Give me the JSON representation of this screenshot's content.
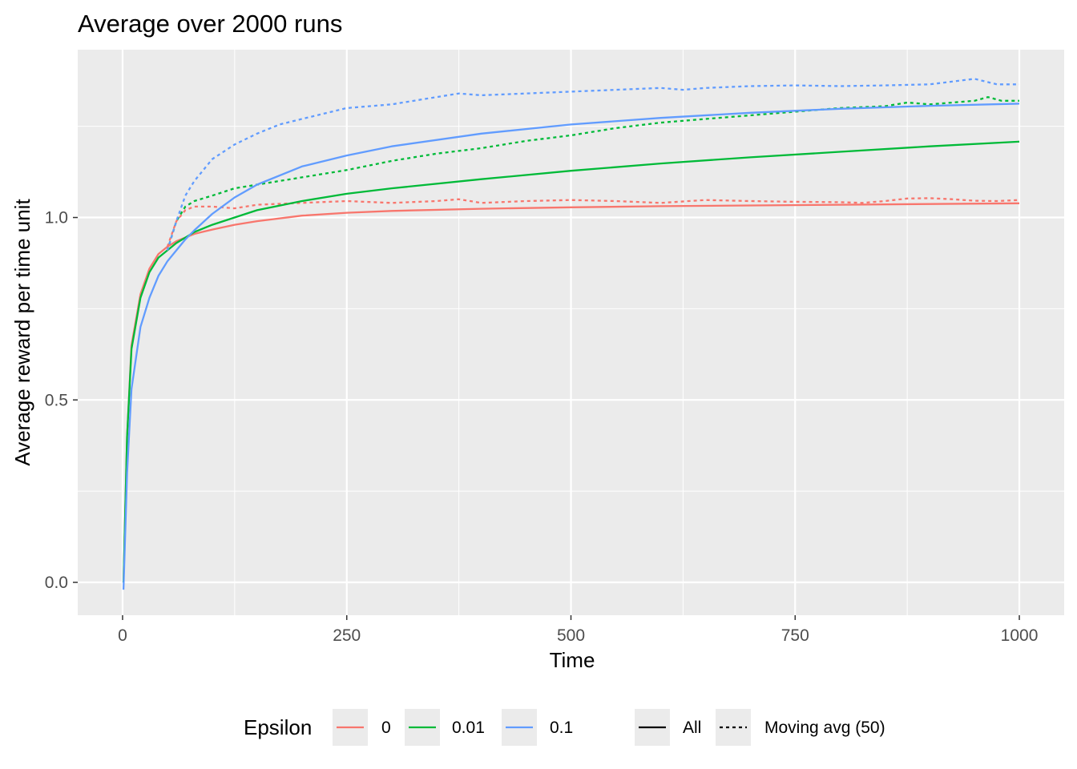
{
  "chart_data": {
    "type": "line",
    "title": "Average over 2000 runs",
    "xlabel": "Time",
    "ylabel": "Average reward per time unit",
    "xlim": [
      -50,
      1050
    ],
    "ylim": [
      -0.09,
      1.46
    ],
    "x_ticks": [
      0,
      250,
      500,
      750,
      1000
    ],
    "x_tick_labels": [
      "0",
      "250",
      "500",
      "750",
      "1000"
    ],
    "y_ticks": [
      0.0,
      0.5,
      1.0
    ],
    "y_tick_labels": [
      "0.0",
      "0.5",
      "1.0"
    ],
    "grid": true,
    "legend_position": "bottom",
    "colors": {
      "eps_0": "#F8766D",
      "eps_001": "#00BA38",
      "eps_01": "#619CFF"
    },
    "legend": {
      "color_title": "Epsilon",
      "color_items": [
        {
          "label": "0",
          "color": "#F8766D"
        },
        {
          "label": "0.01",
          "color": "#00BA38"
        },
        {
          "label": "0.1",
          "color": "#619CFF"
        }
      ],
      "linetype_items": [
        {
          "label": "All",
          "dash": "solid"
        },
        {
          "label": "Moving avg (50)",
          "dash": "dotted"
        }
      ]
    },
    "series": [
      {
        "epsilon": "0",
        "linetype": "All",
        "color": "#F8766D",
        "dash": "solid",
        "x": [
          1,
          5,
          10,
          20,
          30,
          40,
          50,
          60,
          70,
          80,
          100,
          125,
          150,
          200,
          250,
          300,
          400,
          500,
          600,
          700,
          800,
          900,
          1000
        ],
        "y": [
          0.0,
          0.4,
          0.65,
          0.79,
          0.86,
          0.9,
          0.92,
          0.935,
          0.945,
          0.955,
          0.967,
          0.98,
          0.99,
          1.005,
          1.013,
          1.018,
          1.024,
          1.028,
          1.031,
          1.033,
          1.035,
          1.037,
          1.039
        ]
      },
      {
        "epsilon": "0",
        "linetype": "Moving avg (50)",
        "color": "#F8766D",
        "dash": "dotted",
        "x": [
          50,
          60,
          70,
          80,
          100,
          125,
          150,
          200,
          250,
          300,
          350,
          375,
          400,
          450,
          500,
          550,
          600,
          650,
          700,
          750,
          800,
          825,
          850,
          875,
          900,
          925,
          950,
          975,
          1000
        ],
        "y": [
          0.92,
          0.99,
          1.02,
          1.03,
          1.03,
          1.025,
          1.035,
          1.04,
          1.045,
          1.04,
          1.045,
          1.05,
          1.04,
          1.045,
          1.048,
          1.045,
          1.04,
          1.048,
          1.045,
          1.043,
          1.042,
          1.04,
          1.045,
          1.052,
          1.053,
          1.05,
          1.046,
          1.045,
          1.048
        ]
      },
      {
        "epsilon": "0.01",
        "linetype": "All",
        "color": "#00BA38",
        "dash": "solid",
        "x": [
          1,
          5,
          10,
          20,
          30,
          40,
          50,
          60,
          70,
          80,
          100,
          125,
          150,
          200,
          250,
          300,
          400,
          500,
          600,
          700,
          800,
          900,
          1000
        ],
        "y": [
          0.0,
          0.4,
          0.64,
          0.78,
          0.85,
          0.89,
          0.91,
          0.93,
          0.945,
          0.96,
          0.98,
          1.0,
          1.02,
          1.045,
          1.065,
          1.08,
          1.105,
          1.128,
          1.148,
          1.165,
          1.18,
          1.195,
          1.208
        ]
      },
      {
        "epsilon": "0.01",
        "linetype": "Moving avg (50)",
        "color": "#00BA38",
        "dash": "dotted",
        "x": [
          50,
          60,
          70,
          80,
          100,
          125,
          150,
          200,
          250,
          300,
          350,
          400,
          450,
          500,
          550,
          600,
          650,
          700,
          750,
          800,
          850,
          875,
          900,
          950,
          965,
          980,
          1000
        ],
        "y": [
          0.91,
          0.99,
          1.03,
          1.045,
          1.06,
          1.08,
          1.09,
          1.11,
          1.13,
          1.155,
          1.175,
          1.19,
          1.21,
          1.225,
          1.245,
          1.26,
          1.27,
          1.28,
          1.29,
          1.3,
          1.305,
          1.315,
          1.31,
          1.32,
          1.33,
          1.32,
          1.32
        ]
      },
      {
        "epsilon": "0.1",
        "linetype": "All",
        "color": "#619CFF",
        "dash": "solid",
        "x": [
          1,
          5,
          10,
          20,
          30,
          40,
          50,
          60,
          70,
          80,
          100,
          125,
          150,
          200,
          250,
          300,
          400,
          500,
          600,
          700,
          800,
          900,
          1000
        ],
        "y": [
          -0.02,
          0.3,
          0.53,
          0.7,
          0.78,
          0.84,
          0.88,
          0.91,
          0.94,
          0.965,
          1.01,
          1.055,
          1.09,
          1.14,
          1.17,
          1.195,
          1.23,
          1.255,
          1.273,
          1.287,
          1.298,
          1.306,
          1.312
        ]
      },
      {
        "epsilon": "0.1",
        "linetype": "Moving avg (50)",
        "color": "#619CFF",
        "dash": "dotted",
        "x": [
          50,
          60,
          70,
          80,
          100,
          125,
          150,
          175,
          200,
          250,
          300,
          350,
          375,
          400,
          450,
          500,
          550,
          600,
          625,
          650,
          700,
          750,
          800,
          850,
          900,
          950,
          975,
          1000
        ],
        "y": [
          0.91,
          0.99,
          1.06,
          1.1,
          1.16,
          1.2,
          1.23,
          1.255,
          1.27,
          1.3,
          1.31,
          1.33,
          1.34,
          1.335,
          1.34,
          1.345,
          1.35,
          1.355,
          1.35,
          1.355,
          1.36,
          1.362,
          1.36,
          1.362,
          1.365,
          1.38,
          1.365,
          1.365
        ]
      }
    ]
  }
}
